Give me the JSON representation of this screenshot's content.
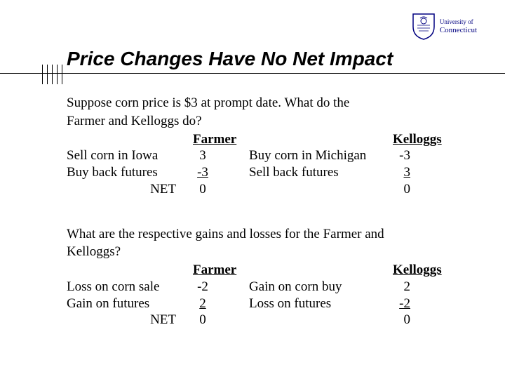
{
  "logo": {
    "univ_small": "University of",
    "univ_name": "Connecticut"
  },
  "title": "Price Changes Have No Net Impact",
  "section1": {
    "intro_line1": "Suppose corn price is $3 at prompt date. What do the",
    "intro_line2": "Farmer and Kelloggs do?",
    "header_farmer": "Farmer",
    "header_kelloggs": "Kelloggs",
    "rows": [
      {
        "l_label": "Sell corn in Iowa",
        "l_val": "3",
        "r_label": "Buy corn in Michigan",
        "r_val": "-3"
      },
      {
        "l_label": "Buy back futures",
        "l_val": "-3",
        "r_label": "Sell back futures",
        "r_val": "3",
        "l_underline": true,
        "r_underline": true
      },
      {
        "l_label": "NET",
        "l_val": "0",
        "r_label": "",
        "r_val": "0",
        "net": true
      }
    ]
  },
  "section2": {
    "intro_line1": "What are the respective gains and losses for the Farmer and",
    "intro_line2": "Kelloggs?",
    "header_farmer": "Farmer",
    "header_kelloggs": "Kelloggs",
    "rows": [
      {
        "l_label": "Loss on corn sale",
        "l_val": "-2",
        "r_label": "Gain on corn buy",
        "r_val": "2"
      },
      {
        "l_label": "Gain on futures",
        "l_val": "2",
        "r_label": "Loss on futures",
        "r_val": "-2",
        "l_underline": true,
        "r_underline": true
      },
      {
        "l_label": "NET",
        "l_val": "0",
        "r_label": "",
        "r_val": "0",
        "net": true
      }
    ]
  },
  "colors": {
    "text": "#000000",
    "logo_text": "#000080",
    "background": "#ffffff"
  },
  "typography": {
    "title_font": "Arial",
    "title_size_pt": 21,
    "body_font": "Times New Roman",
    "body_size_pt": 14
  }
}
